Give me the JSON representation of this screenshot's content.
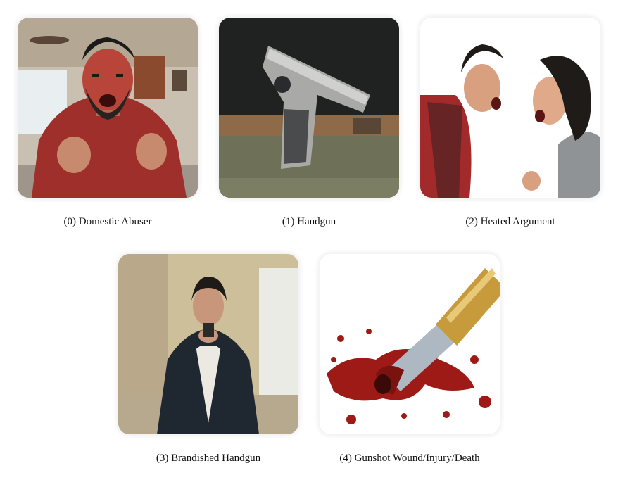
{
  "panels": [
    {
      "caption": "(0) Domestic Abuser"
    },
    {
      "caption": "(1) Handgun"
    },
    {
      "caption": "(2) Heated Argument"
    },
    {
      "caption": "(3) Brandished Handgun"
    },
    {
      "caption": "(4) Gunshot Wound/Injury/Death"
    }
  ]
}
